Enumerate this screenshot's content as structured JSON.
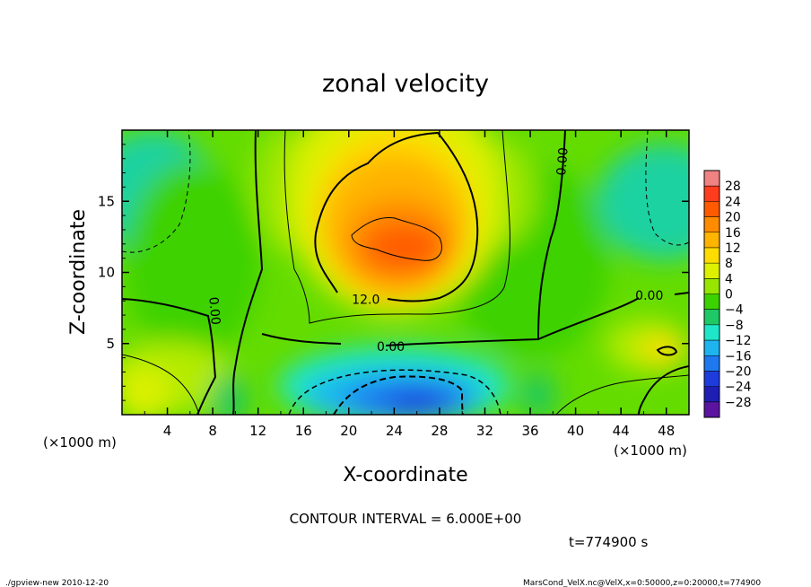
{
  "chart_data": {
    "type": "heatmap",
    "title": "zonal velocity",
    "xlabel": "X-coordinate",
    "ylabel": "Z-coordinate",
    "x_unit_left": "(×1000 m)",
    "x_unit_right": "(×1000 m)",
    "xlim": [
      0,
      50
    ],
    "ylim": [
      0,
      20
    ],
    "x_ticks": [
      4,
      8,
      12,
      16,
      20,
      24,
      28,
      32,
      36,
      40,
      44,
      48
    ],
    "y_ticks": [
      5,
      10,
      15
    ],
    "colorbar": {
      "labels": [
        "28",
        "24",
        "20",
        "16",
        "12",
        "8",
        "4",
        "0",
        "−4",
        "−8",
        "−12",
        "−16",
        "−20",
        "−24",
        "−28"
      ],
      "colors": [
        "#f08282",
        "#ff3c1e",
        "#ff5a00",
        "#ff8c00",
        "#ffb400",
        "#ffdc00",
        "#dcf000",
        "#96e600",
        "#3cd200",
        "#1ec864",
        "#1ee6c8",
        "#1eb4f0",
        "#1e78f0",
        "#1e3cdc",
        "#1e1eb4",
        "#5a14a0"
      ]
    },
    "contour_labels": [
      {
        "text": "0.00",
        "x": 38.8,
        "z": 17.8,
        "rotate": -85
      },
      {
        "text": "0.00",
        "x": 8.2,
        "z": 7.3,
        "rotate": 85
      },
      {
        "text": "12.0",
        "x": 21.5,
        "z": 8.1,
        "rotate": 0
      },
      {
        "text": "0.00",
        "x": 23.7,
        "z": 4.8,
        "rotate": 0
      },
      {
        "text": "0.00",
        "x": 46.5,
        "z": 8.4,
        "rotate": 0
      }
    ],
    "contour_interval_text": "CONTOUR INTERVAL = 6.000E+00",
    "time_text": "t=774900  s",
    "footer_left": "./gpview-new   2010-12-20",
    "footer_right": "MarsCond_VelX.nc@VelX,x=0:50000,z=0:20000,t=774900"
  },
  "colors": {
    "background": "#ffffff",
    "frame": "#000000"
  }
}
